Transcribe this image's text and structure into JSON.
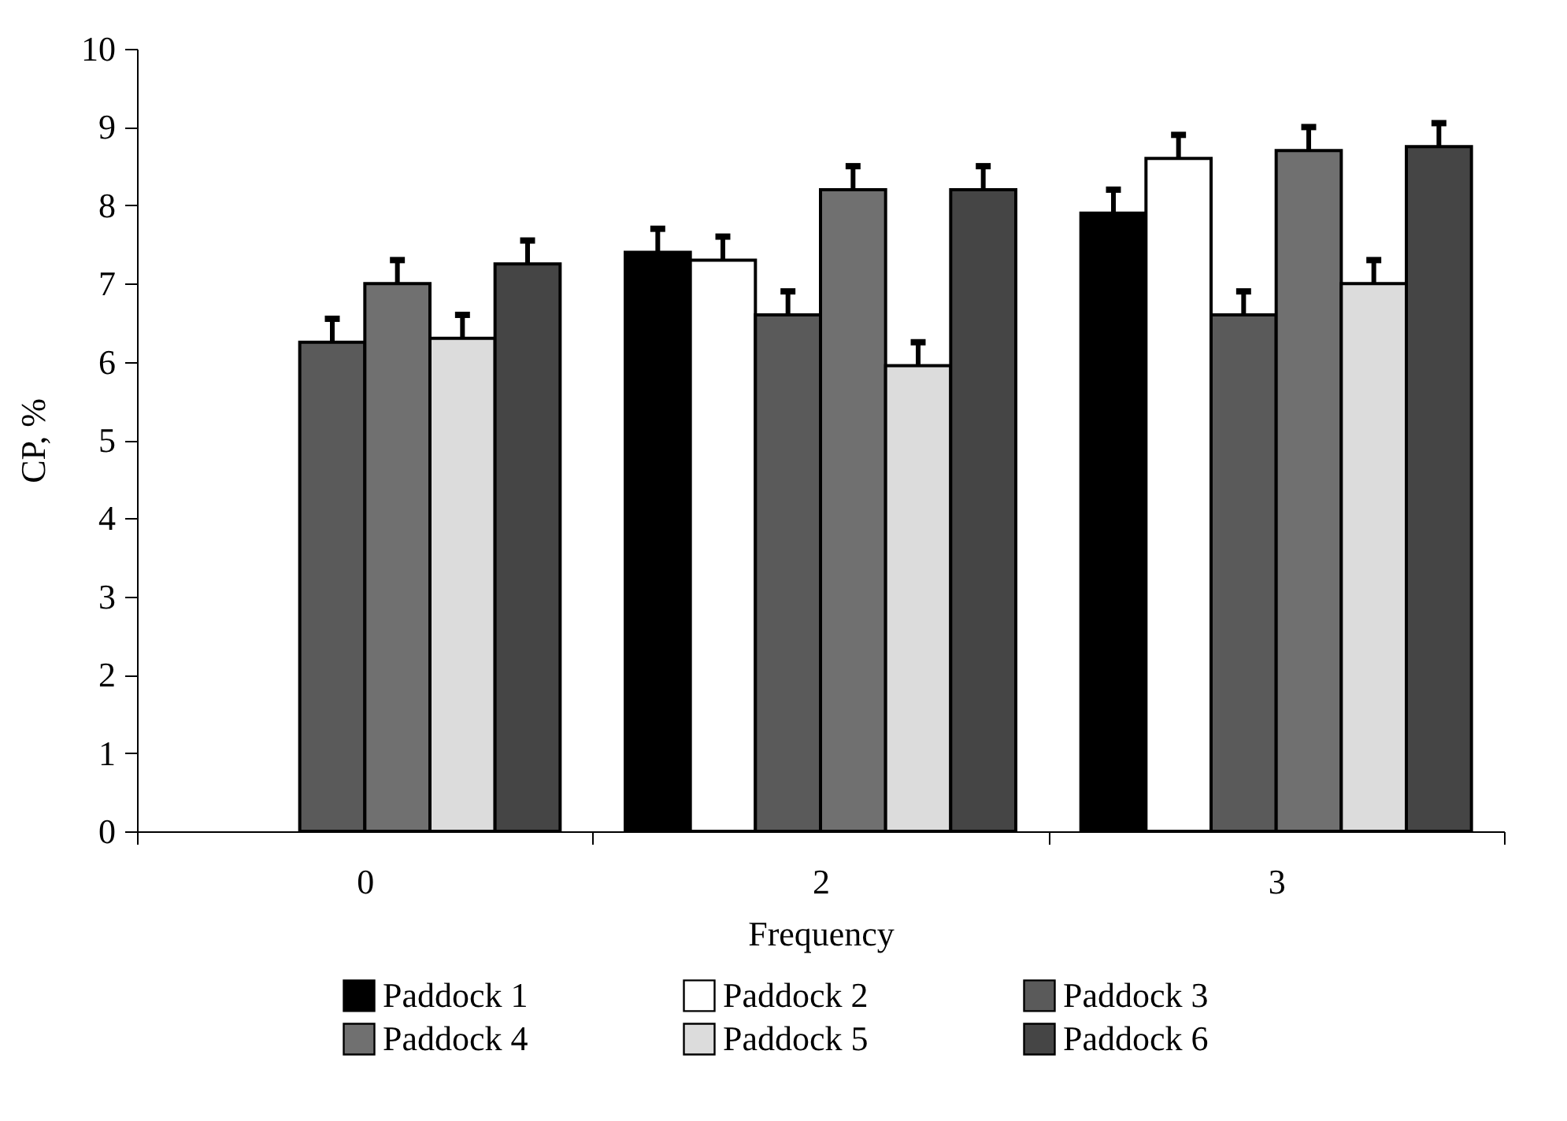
{
  "chart_data": {
    "type": "bar",
    "xlabel": "Frequency",
    "ylabel": "CP, %",
    "categories": [
      "0",
      "2",
      "3"
    ],
    "series": [
      {
        "name": "Paddock 1",
        "color": "#000000",
        "values": [
          null,
          7.4,
          7.9
        ],
        "errors": [
          null,
          0.3,
          0.3
        ]
      },
      {
        "name": "Paddock 2",
        "color": "#ffffff",
        "values": [
          null,
          7.3,
          8.6
        ],
        "errors": [
          null,
          0.3,
          0.3
        ]
      },
      {
        "name": "Paddock 3",
        "color": "#5a5a5a",
        "values": [
          6.25,
          6.6,
          6.6
        ],
        "errors": [
          0.3,
          0.3,
          0.3
        ]
      },
      {
        "name": "Paddock 4",
        "color": "#707070",
        "values": [
          7.0,
          8.2,
          8.7
        ],
        "errors": [
          0.3,
          0.3,
          0.3
        ]
      },
      {
        "name": "Paddock 5",
        "color": "#dcdcdc",
        "values": [
          6.3,
          5.95,
          7.0
        ],
        "errors": [
          0.3,
          0.3,
          0.3
        ]
      },
      {
        "name": "Paddock 6",
        "color": "#454545",
        "values": [
          7.25,
          8.2,
          8.75
        ],
        "errors": [
          0.3,
          0.3,
          0.3
        ]
      }
    ],
    "ylim": [
      0,
      10
    ],
    "yticks": [
      0,
      1,
      2,
      3,
      4,
      5,
      6,
      7,
      8,
      9,
      10
    ],
    "grid": false,
    "legend": "bottom"
  }
}
